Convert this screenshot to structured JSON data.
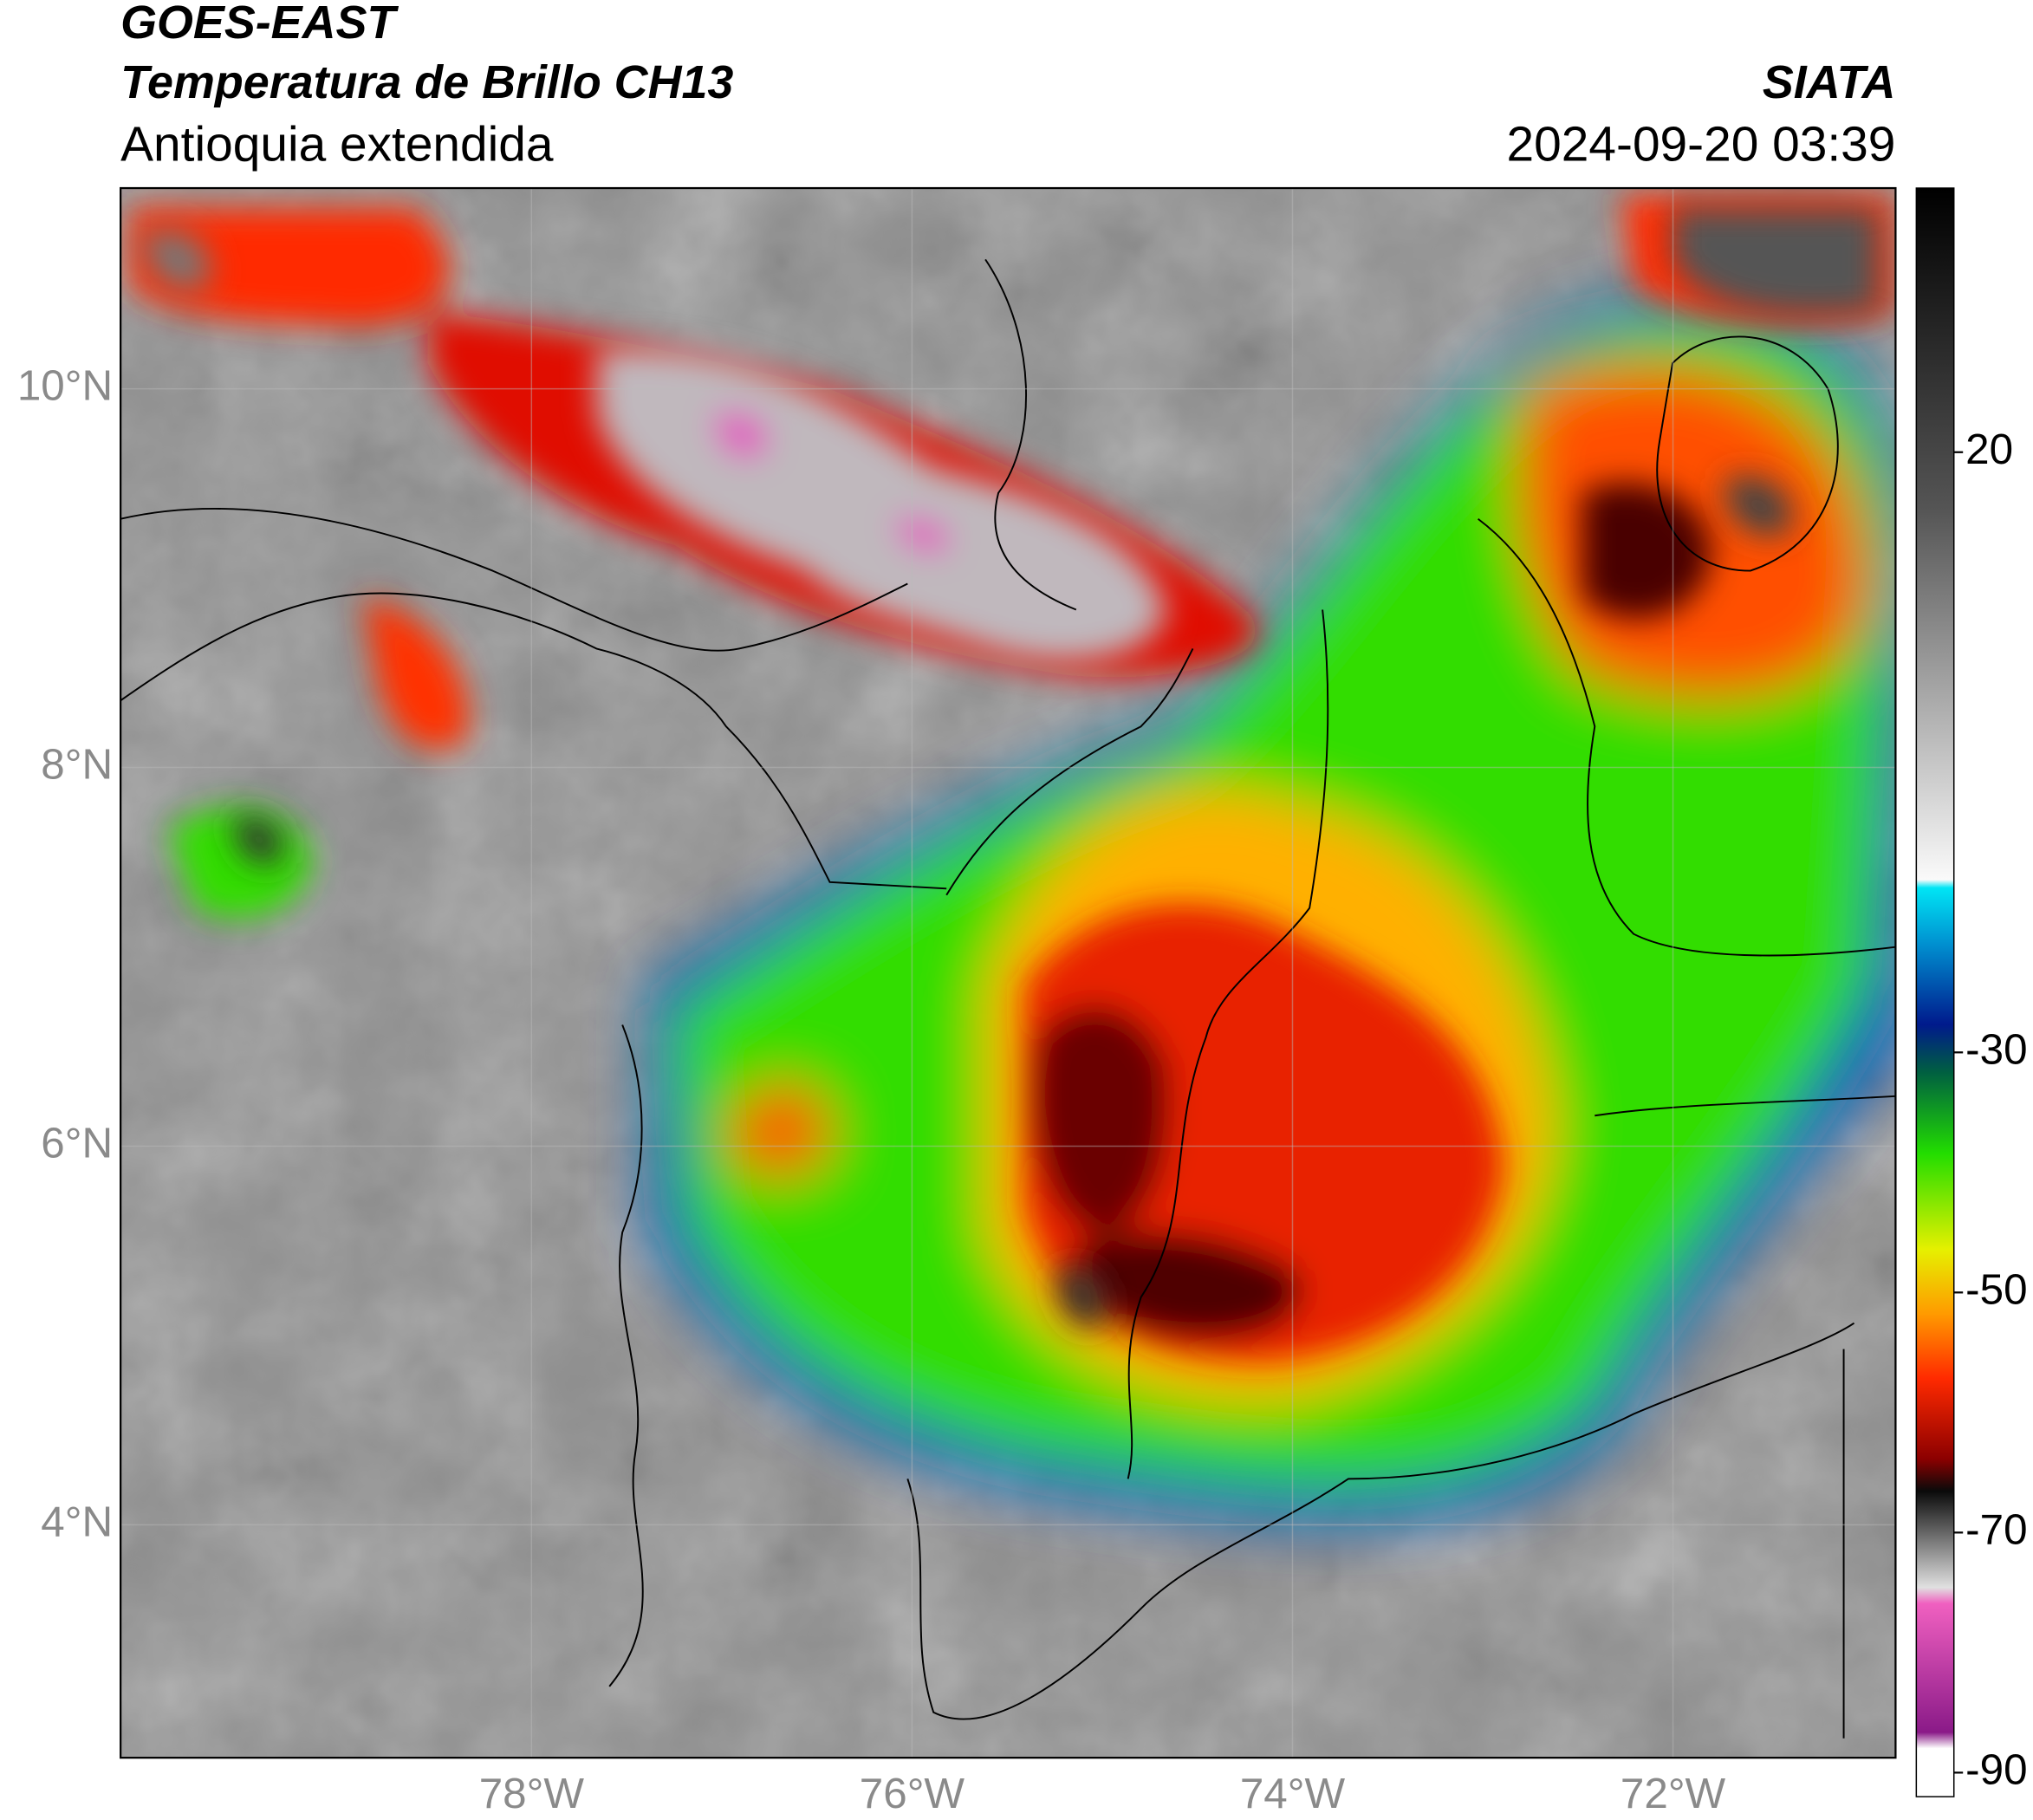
{
  "header": {
    "satellite": "GOES-EAST",
    "product": "Temperatura de Brillo CH13",
    "region": "Antioquia extendida",
    "source": "SIATA",
    "datetime": "2024-09-20 03:39"
  },
  "map": {
    "xlim": [
      -80.16,
      -70.83
    ],
    "ylim": [
      2.77,
      11.06
    ],
    "xticks": [
      {
        "value": -78,
        "label": "78°W"
      },
      {
        "value": -76,
        "label": "76°W"
      },
      {
        "value": -74,
        "label": "74°W"
      },
      {
        "value": -72,
        "label": "72°W"
      }
    ],
    "yticks": [
      {
        "value": 10,
        "label": "10°N"
      },
      {
        "value": 8,
        "label": "8°N"
      },
      {
        "value": 6,
        "label": "6°N"
      },
      {
        "value": 4,
        "label": "4°N"
      }
    ],
    "grid": true
  },
  "colorbar": {
    "lim": [
      -92,
      42
    ],
    "ticks": [
      20,
      -30,
      -50,
      -70,
      -90
    ]
  }
}
